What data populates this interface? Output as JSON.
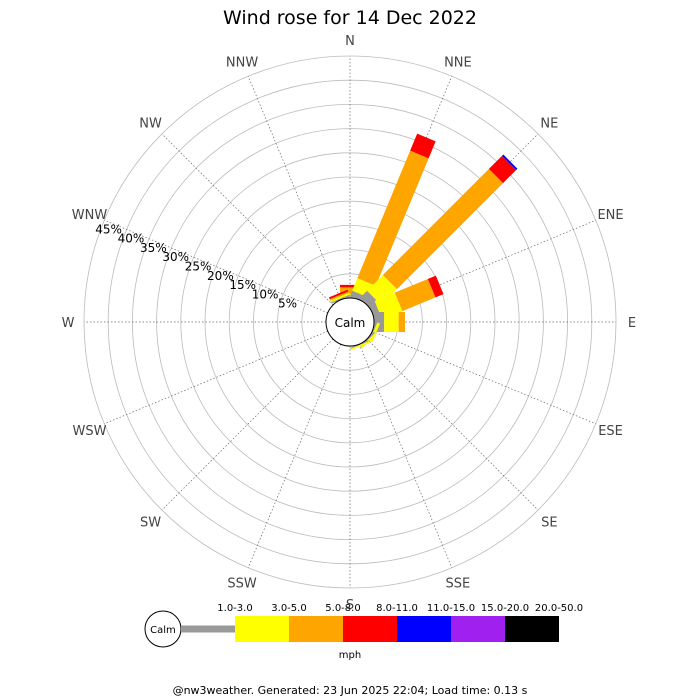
{
  "chart_data": {
    "type": "windrose",
    "title": "Wind rose for 14 Dec 2022",
    "directions": [
      "N",
      "NNE",
      "NE",
      "ENE",
      "E",
      "ESE",
      "SE",
      "SSE",
      "S",
      "SSW",
      "SW",
      "WSW",
      "W",
      "WNW",
      "NW",
      "NNW"
    ],
    "radial_ticks": [
      "5%",
      "10%",
      "15%",
      "20%",
      "25%",
      "30%",
      "35%",
      "40%",
      "45%"
    ],
    "radial_max_pct": 50,
    "calm_label": "Calm",
    "legend_unit": "mph",
    "bins": [
      {
        "label": "1.0-3.0",
        "color": "#999999"
      },
      {
        "label": "3.0-5.0",
        "color": "#ffff00"
      },
      {
        "label": "5.0-8.0",
        "color": "#ffa500"
      },
      {
        "label": "8.0-11.0",
        "color": "#ff0000"
      },
      {
        "label": "11.0-15.0",
        "color": "#0000ff"
      },
      {
        "label": "15.0-20.0",
        "color": "#a020f0"
      },
      {
        "label": "20.0-50.0",
        "color": "#000000"
      }
    ],
    "series": [
      {
        "direction": "N",
        "values": [
          0.3,
          0.6,
          1.3,
          0.5,
          0,
          0,
          0
        ]
      },
      {
        "direction": "NNE",
        "values": [
          1.2,
          2.8,
          28.5,
          3.8,
          0,
          0,
          0
        ]
      },
      {
        "direction": "NE",
        "values": [
          2.1,
          4.6,
          31.0,
          3.8,
          0.4,
          0,
          0
        ]
      },
      {
        "direction": "ENE",
        "values": [
          1.4,
          4.5,
          7.4,
          1.8,
          0,
          0,
          0
        ]
      },
      {
        "direction": "E",
        "values": [
          2.1,
          3.0,
          1.3,
          0,
          0,
          0,
          0
        ]
      },
      {
        "direction": "ESE",
        "values": [
          0.3,
          0.6,
          0,
          0,
          0,
          0,
          0
        ]
      },
      {
        "direction": "SE",
        "values": [
          0.3,
          0.4,
          0,
          0,
          0,
          0,
          0
        ]
      },
      {
        "direction": "SSE",
        "values": [
          0.2,
          0.3,
          0,
          0,
          0,
          0,
          0
        ]
      },
      {
        "direction": "S",
        "values": [
          0,
          0,
          0,
          0,
          0,
          0,
          0
        ]
      },
      {
        "direction": "SSW",
        "values": [
          0,
          0,
          0,
          0,
          0,
          0,
          0
        ]
      },
      {
        "direction": "SW",
        "values": [
          0,
          0,
          0,
          0,
          0,
          0,
          0
        ]
      },
      {
        "direction": "WSW",
        "values": [
          0,
          0,
          0,
          0,
          0,
          0,
          0
        ]
      },
      {
        "direction": "W",
        "values": [
          0,
          0,
          0,
          0,
          0,
          0,
          0
        ]
      },
      {
        "direction": "WNW",
        "values": [
          0,
          0,
          0,
          0,
          0,
          0,
          0
        ]
      },
      {
        "direction": "NW",
        "values": [
          0,
          0,
          0,
          0,
          0,
          0,
          0
        ]
      },
      {
        "direction": "NNW",
        "values": [
          0.3,
          0.4,
          0.3,
          0.4,
          0,
          0,
          0
        ]
      }
    ]
  },
  "footer": "@nw3weather. Generated: 23 Jun 2025 22:04; Load time: 0.13 s"
}
